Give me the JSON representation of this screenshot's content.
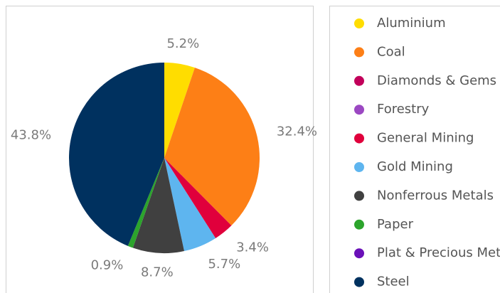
{
  "chart_data": {
    "type": "pie",
    "categories": [
      "Aluminium",
      "Coal",
      "Diamonds & Gems",
      "Forestry",
      "General Mining",
      "Gold Mining",
      "Nonferrous Metals",
      "Paper",
      "Plat & Precious Met",
      "Steel"
    ],
    "values": [
      5.2,
      32.4,
      0,
      0,
      3.4,
      5.7,
      8.7,
      0.9,
      0,
      43.8
    ],
    "colors": [
      "#ffdd00",
      "#fd7f16",
      "#c2005a",
      "#9b48c2",
      "#e0003c",
      "#5eb5ef",
      "#404040",
      "#2ca42c",
      "#6a10b8",
      "#00315f"
    ]
  }
}
